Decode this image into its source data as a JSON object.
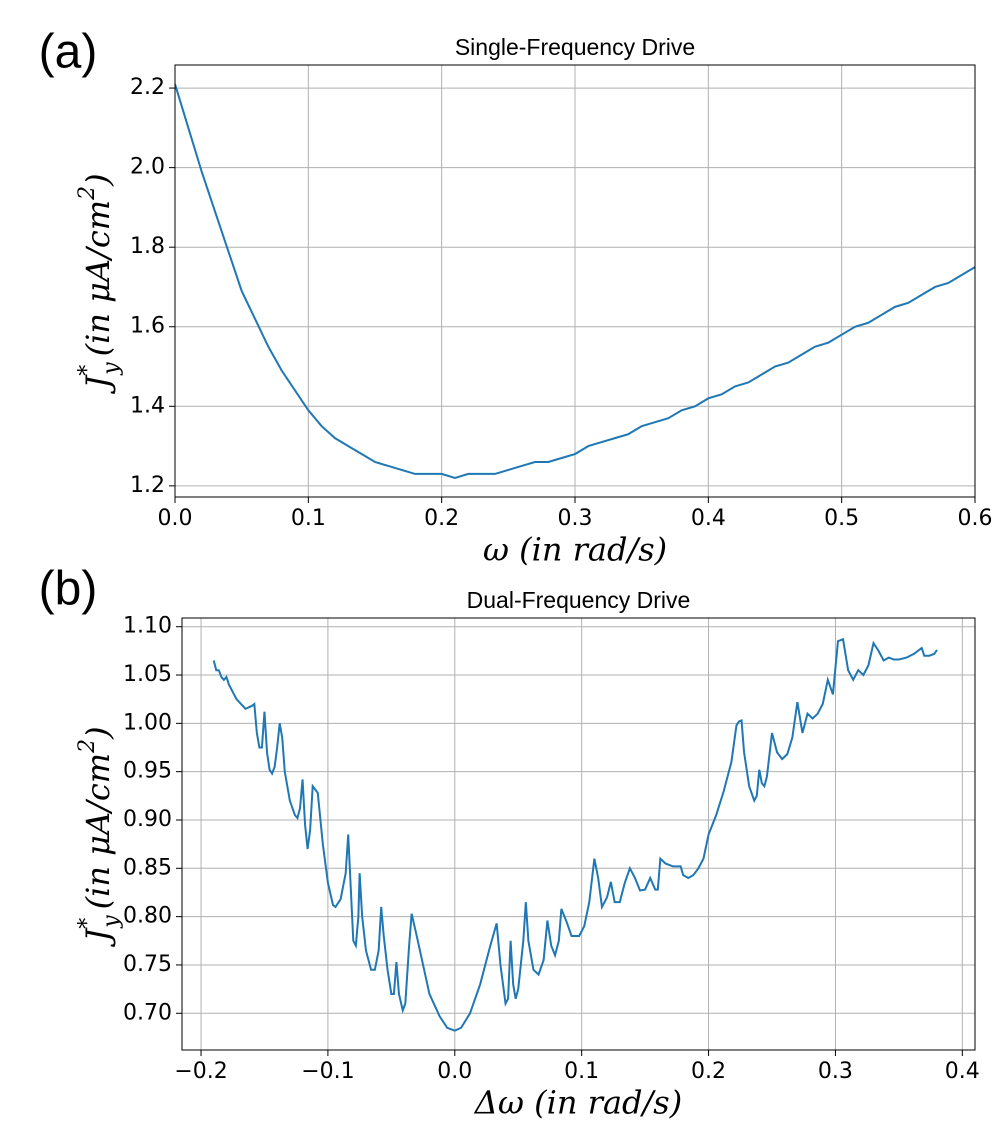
{
  "chart_data": [
    {
      "type": "line",
      "panel_label": "(a)",
      "title": "Single-Frequency Drive",
      "xlabel": "ω (in rad/s)",
      "ylabel": {
        "main": "J",
        "sub": "y",
        "sup": "*",
        "unit": "(in μA/cm",
        "unit_sup": "2",
        "close": ")"
      },
      "color": "#1f77b4",
      "grid": true,
      "xlim": [
        0,
        0.6
      ],
      "ylim": [
        1.172,
        2.258
      ],
      "xticks": [
        {
          "value": 0,
          "label": "0.0"
        },
        0.1,
        0.2,
        0.3,
        0.4,
        0.5,
        0.6
      ],
      "yticks": [
        1.2,
        1.4,
        1.6,
        1.8,
        {
          "value": 2,
          "label": "2.0"
        },
        2.2
      ],
      "x": [
        0,
        0.01,
        0.02,
        0.03,
        0.04,
        0.05,
        0.06,
        0.07,
        0.08,
        0.09,
        0.1,
        0.11,
        0.12,
        0.13,
        0.14,
        0.15,
        0.16,
        0.17,
        0.18,
        0.19,
        0.2,
        0.21,
        0.22,
        0.23,
        0.24,
        0.25,
        0.26,
        0.27,
        0.28,
        0.29,
        0.3,
        0.31,
        0.32,
        0.33,
        0.34,
        0.35,
        0.36,
        0.37,
        0.38,
        0.39,
        0.4,
        0.41,
        0.42,
        0.43,
        0.44,
        0.45,
        0.46,
        0.47,
        0.48,
        0.49,
        0.5,
        0.51,
        0.52,
        0.53,
        0.54,
        0.55,
        0.56,
        0.57,
        0.58,
        0.59,
        0.6
      ],
      "values": [
        2.21,
        2.1,
        1.99,
        1.89,
        1.79,
        1.69,
        1.62,
        1.55,
        1.49,
        1.44,
        1.39,
        1.35,
        1.32,
        1.3,
        1.28,
        1.26,
        1.25,
        1.24,
        1.23,
        1.23,
        1.23,
        1.22,
        1.23,
        1.23,
        1.23,
        1.24,
        1.25,
        1.26,
        1.26,
        1.27,
        1.28,
        1.3,
        1.31,
        1.32,
        1.33,
        1.35,
        1.36,
        1.37,
        1.39,
        1.4,
        1.42,
        1.43,
        1.45,
        1.46,
        1.48,
        1.5,
        1.51,
        1.53,
        1.55,
        1.56,
        1.58,
        1.6,
        1.61,
        1.63,
        1.65,
        1.66,
        1.68,
        1.7,
        1.71,
        1.73,
        1.75
      ]
    },
    {
      "type": "line",
      "panel_label": "(b)",
      "title": "Dual-Frequency Drive",
      "xlabel": "Δω (in rad/s)",
      "ylabel": {
        "main": "J",
        "sub": "y",
        "sup": "*",
        "unit": "(in μA/cm",
        "unit_sup": "2",
        "close": ")"
      },
      "color": "#1f77b4",
      "grid": true,
      "xlim": [
        -0.215,
        0.41
      ],
      "ylim": [
        0.662,
        1.109
      ],
      "xticks": [
        {
          "value": -0.2,
          "label": "−0.2"
        },
        {
          "value": -0.1,
          "label": "−0.1"
        },
        {
          "value": 0,
          "label": "0.0"
        },
        0.1,
        0.2,
        0.3,
        0.4
      ],
      "yticks": [
        {
          "value": 0.7,
          "label": "0.70"
        },
        0.75,
        {
          "value": 0.8,
          "label": "0.80"
        },
        0.85,
        {
          "value": 0.9,
          "label": "0.90"
        },
        0.95,
        {
          "value": 1,
          "label": "1.00"
        },
        1.05,
        {
          "value": 1.1,
          "label": "1.10"
        }
      ],
      "x": [
        -0.19,
        -0.188,
        -0.186,
        -0.184,
        -0.182,
        -0.18,
        -0.178,
        -0.172,
        -0.165,
        -0.16,
        -0.158,
        -0.156,
        -0.154,
        -0.152,
        -0.15,
        -0.148,
        -0.146,
        -0.144,
        -0.142,
        -0.14,
        -0.138,
        -0.136,
        -0.134,
        -0.13,
        -0.126,
        -0.124,
        -0.122,
        -0.12,
        -0.118,
        -0.116,
        -0.114,
        -0.112,
        -0.108,
        -0.104,
        -0.1,
        -0.096,
        -0.094,
        -0.09,
        -0.086,
        -0.084,
        -0.082,
        -0.08,
        -0.078,
        -0.076,
        -0.075,
        -0.073,
        -0.07,
        -0.066,
        -0.063,
        -0.06,
        -0.058,
        -0.056,
        -0.053,
        -0.05,
        -0.048,
        -0.046,
        -0.044,
        -0.041,
        -0.039,
        -0.036,
        -0.034,
        -0.03,
        -0.025,
        -0.02,
        -0.012,
        -0.006,
        0,
        0.005,
        0.012,
        0.02,
        0.028,
        0.033,
        0.036,
        0.04,
        0.042,
        0.044,
        0.046,
        0.048,
        0.05,
        0.054,
        0.056,
        0.058,
        0.062,
        0.066,
        0.07,
        0.073,
        0.076,
        0.079,
        0.082,
        0.084,
        0.088,
        0.092,
        0.098,
        0.102,
        0.106,
        0.11,
        0.113,
        0.116,
        0.12,
        0.123,
        0.126,
        0.13,
        0.134,
        0.138,
        0.142,
        0.146,
        0.15,
        0.154,
        0.158,
        0.16,
        0.162,
        0.166,
        0.172,
        0.178,
        0.18,
        0.184,
        0.188,
        0.192,
        0.196,
        0.2,
        0.206,
        0.212,
        0.218,
        0.222,
        0.224,
        0.226,
        0.228,
        0.232,
        0.236,
        0.238,
        0.24,
        0.242,
        0.244,
        0.246,
        0.25,
        0.254,
        0.258,
        0.262,
        0.266,
        0.27,
        0.274,
        0.278,
        0.282,
        0.286,
        0.29,
        0.294,
        0.298,
        0.302,
        0.306,
        0.31,
        0.314,
        0.318,
        0.322,
        0.326,
        0.33,
        0.334,
        0.338,
        0.342,
        0.346,
        0.35,
        0.356,
        0.362,
        0.368,
        0.37,
        0.374,
        0.378,
        0.38
      ],
      "values": [
        1.065,
        1.055,
        1.055,
        1.048,
        1.045,
        1.048,
        1.04,
        1.025,
        1.015,
        1.018,
        1.02,
        0.99,
        0.975,
        0.975,
        1.012,
        0.97,
        0.952,
        0.948,
        0.955,
        0.975,
        1.0,
        0.985,
        0.95,
        0.92,
        0.905,
        0.902,
        0.912,
        0.942,
        0.895,
        0.87,
        0.89,
        0.935,
        0.928,
        0.875,
        0.835,
        0.812,
        0.81,
        0.818,
        0.845,
        0.885,
        0.83,
        0.775,
        0.77,
        0.8,
        0.845,
        0.8,
        0.765,
        0.745,
        0.745,
        0.765,
        0.81,
        0.78,
        0.745,
        0.72,
        0.72,
        0.753,
        0.72,
        0.703,
        0.71,
        0.77,
        0.803,
        0.78,
        0.75,
        0.72,
        0.697,
        0.685,
        0.682,
        0.685,
        0.7,
        0.73,
        0.77,
        0.793,
        0.75,
        0.71,
        0.715,
        0.775,
        0.73,
        0.715,
        0.725,
        0.775,
        0.815,
        0.775,
        0.745,
        0.74,
        0.755,
        0.796,
        0.77,
        0.76,
        0.775,
        0.808,
        0.795,
        0.78,
        0.78,
        0.79,
        0.815,
        0.86,
        0.84,
        0.81,
        0.82,
        0.836,
        0.815,
        0.815,
        0.835,
        0.85,
        0.84,
        0.827,
        0.828,
        0.84,
        0.828,
        0.828,
        0.86,
        0.855,
        0.852,
        0.852,
        0.843,
        0.84,
        0.843,
        0.85,
        0.86,
        0.885,
        0.905,
        0.93,
        0.96,
        0.998,
        1.002,
        1.003,
        0.97,
        0.935,
        0.92,
        0.925,
        0.952,
        0.938,
        0.935,
        0.945,
        0.99,
        0.97,
        0.963,
        0.968,
        0.985,
        1.022,
        0.99,
        1.01,
        1.005,
        1.01,
        1.02,
        1.045,
        1.03,
        1.085,
        1.087,
        1.055,
        1.045,
        1.055,
        1.05,
        1.06,
        1.083,
        1.075,
        1.065,
        1.068,
        1.066,
        1.066,
        1.068,
        1.072,
        1.078,
        1.07,
        1.07,
        1.072,
        1.076
      ]
    }
  ]
}
